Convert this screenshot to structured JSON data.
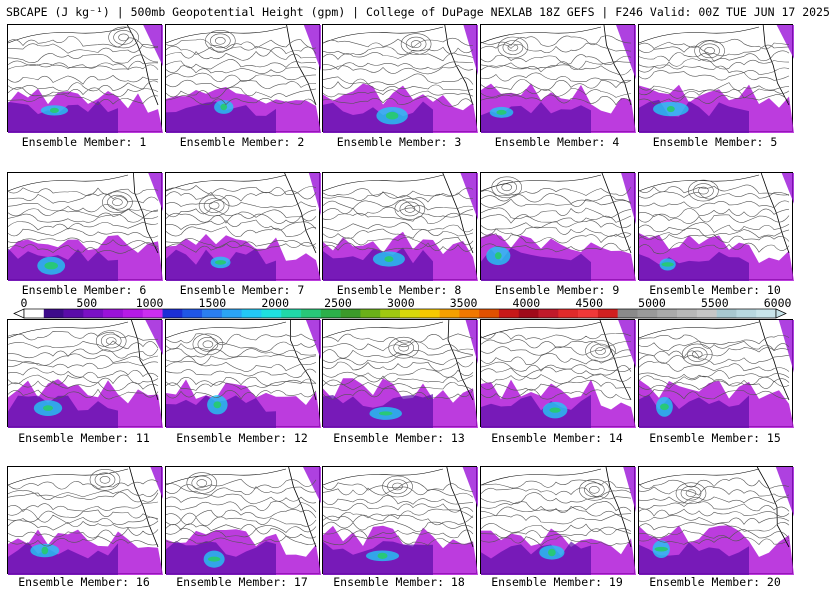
{
  "header": {
    "title": "SBCAPE (J kg⁻¹) | 500mb Geopotential Height (gpm) | College of DuPage NEXLAB 18Z GEFS | F246 Valid: 00Z TUE JUN 17 2025"
  },
  "members": [
    {
      "label": "Ensemble Member: 1"
    },
    {
      "label": "Ensemble Member: 2"
    },
    {
      "label": "Ensemble Member: 3"
    },
    {
      "label": "Ensemble Member: 4"
    },
    {
      "label": "Ensemble Member: 5"
    },
    {
      "label": "Ensemble Member: 6"
    },
    {
      "label": "Ensemble Member: 7"
    },
    {
      "label": "Ensemble Member: 8"
    },
    {
      "label": "Ensemble Member: 9"
    },
    {
      "label": "Ensemble Member: 10"
    },
    {
      "label": "Ensemble Member: 11"
    },
    {
      "label": "Ensemble Member: 12"
    },
    {
      "label": "Ensemble Member: 13"
    },
    {
      "label": "Ensemble Member: 14"
    },
    {
      "label": "Ensemble Member: 15"
    },
    {
      "label": "Ensemble Member: 16"
    },
    {
      "label": "Ensemble Member: 17"
    },
    {
      "label": "Ensemble Member: 18"
    },
    {
      "label": "Ensemble Member: 19"
    },
    {
      "label": "Ensemble Member: 20"
    }
  ],
  "colorbar": {
    "ticks": [
      "0",
      "500",
      "1000",
      "1500",
      "2000",
      "2500",
      "3000",
      "3500",
      "4000",
      "4500",
      "5000",
      "5500",
      "6000"
    ],
    "colors": [
      "#ffffff",
      "#3d0b8a",
      "#5a0ca8",
      "#7a10c4",
      "#9a12d8",
      "#b51ae6",
      "#cc2ef0",
      "#1b2fd6",
      "#1f56e6",
      "#2a7ef0",
      "#2aa4f5",
      "#22c8f5",
      "#1ee0e0",
      "#20d8a8",
      "#28c878",
      "#2cb04a",
      "#3c9a2a",
      "#6ab018",
      "#a0c810",
      "#d8d80a",
      "#f5c800",
      "#f5a000",
      "#f07800",
      "#e05000",
      "#c81818",
      "#a00a1a",
      "#c01a2a",
      "#e02a2a",
      "#f03838",
      "#d02020",
      "#8a8a8a",
      "#9a9a9a",
      "#aaaaaa",
      "#b8b8b8",
      "#c6c6c6",
      "#a8c8d0",
      "#b8d8e0",
      "#c8e4ea"
    ]
  }
}
